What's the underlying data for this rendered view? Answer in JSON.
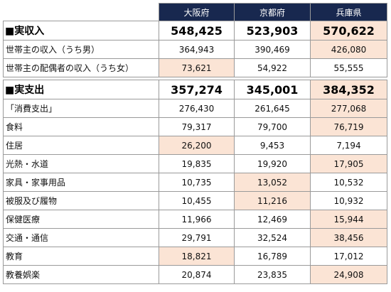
{
  "header": {
    "blank": "",
    "columns": [
      "大阪府",
      "京都府",
      "兵庫県"
    ]
  },
  "colors": {
    "header_bg": "#18284f",
    "highlight": "#fbe4d5"
  },
  "income": {
    "main": {
      "label": "■実収入",
      "values": [
        "548,425",
        "523,903",
        "570,622"
      ],
      "highlight": [
        false,
        false,
        true
      ]
    },
    "rows": [
      {
        "label": "世帯主の収入（うち男）",
        "values": [
          "364,943",
          "390,469",
          "426,080"
        ],
        "highlight": [
          false,
          false,
          true
        ]
      },
      {
        "label": "世帯主の配偶者の収入（うち女）",
        "values": [
          "73,621",
          "54,922",
          "55,555"
        ],
        "highlight": [
          true,
          false,
          false
        ]
      }
    ]
  },
  "expenditure": {
    "main": {
      "label": "■実支出",
      "values": [
        "357,274",
        "345,001",
        "384,352"
      ],
      "highlight": [
        false,
        false,
        true
      ]
    },
    "rows": [
      {
        "label": "「消費支出」",
        "values": [
          "276,430",
          "261,645",
          "277,068"
        ],
        "highlight": [
          false,
          false,
          true
        ]
      },
      {
        "label": "食料",
        "values": [
          "79,317",
          "79,700",
          "76,719"
        ],
        "highlight": [
          false,
          false,
          true
        ]
      },
      {
        "label": "住居",
        "values": [
          "26,200",
          "9,453",
          "7,194"
        ],
        "highlight": [
          true,
          false,
          false
        ]
      },
      {
        "label": "光熱・水道",
        "values": [
          "19,835",
          "19,920",
          "17,905"
        ],
        "highlight": [
          false,
          false,
          true
        ]
      },
      {
        "label": "家具・家事用品",
        "values": [
          "10,735",
          "13,052",
          "10,532"
        ],
        "highlight": [
          false,
          true,
          false
        ]
      },
      {
        "label": "被服及び履物",
        "values": [
          "10,455",
          "11,216",
          "10,932"
        ],
        "highlight": [
          false,
          true,
          false
        ]
      },
      {
        "label": "保健医療",
        "values": [
          "11,966",
          "12,469",
          "15,944"
        ],
        "highlight": [
          false,
          false,
          true
        ]
      },
      {
        "label": "交通・通信",
        "values": [
          "29,791",
          "32,524",
          "38,456"
        ],
        "highlight": [
          false,
          false,
          true
        ]
      },
      {
        "label": "教育",
        "values": [
          "18,821",
          "16,789",
          "17,012"
        ],
        "highlight": [
          true,
          false,
          false
        ]
      },
      {
        "label": "教養娯楽",
        "values": [
          "20,874",
          "23,835",
          "24,908"
        ],
        "highlight": [
          false,
          false,
          true
        ]
      }
    ]
  }
}
